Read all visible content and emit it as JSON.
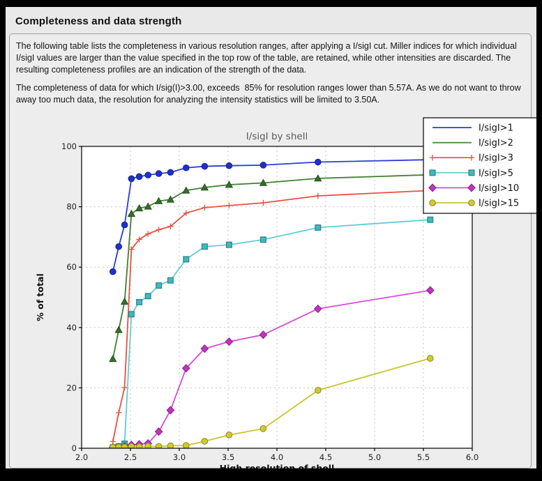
{
  "page": {
    "title": "Completeness and data strength",
    "paragraph1": "The following table lists the completeness in various resolution ranges, after applying a I/sigI cut. Miller indices for which individual I/sigI values are larger than the value specified in the top row of the table, are retained, while other intensities are discarded. The resulting completeness profiles are an indication of the strength of the data.",
    "paragraph2": "The completeness of data for which I/sig(I)>3.00, exceeds  85% for resolution ranges lower than 5.57A. As we do not want to throw away too much data, the resolution for analyzing the intensity statistics will be limited to 3.50A."
  },
  "chart_data": {
    "type": "line",
    "title": "I/sigI by shell",
    "xlabel": "High resolution of shell",
    "ylabel": "% of total",
    "xlim": [
      2.0,
      6.0
    ],
    "ylim": [
      0,
      100
    ],
    "xticks": [
      2.0,
      2.5,
      3.0,
      3.5,
      4.0,
      4.5,
      5.0,
      5.5,
      6.0
    ],
    "xtick_labels": [
      "2.0",
      "2.5",
      "3.0",
      "3.5",
      "4.0",
      "4.5",
      "5.0",
      "5.5",
      "6.0"
    ],
    "yticks": [
      0,
      20,
      40,
      60,
      80,
      100
    ],
    "ytick_labels": [
      "0",
      "20",
      "40",
      "60",
      "80",
      "100"
    ],
    "grid": true,
    "legend_position": "top-right",
    "title_color": "#5a5a5a",
    "grid_color": "#c3c3c3",
    "plot_bg": "#ffffff",
    "x": [
      2.32,
      2.38,
      2.44,
      2.51,
      2.59,
      2.68,
      2.79,
      2.91,
      3.07,
      3.26,
      3.51,
      3.86,
      4.42,
      5.57
    ],
    "series": [
      {
        "name": "I/sigI>1",
        "marker": "circle",
        "line_color": "#2a3cd2",
        "fill": "#1f32c8",
        "edge": "#141f96",
        "legend_marker": false,
        "values": [
          58.5,
          66.8,
          74.0,
          89.3,
          90.0,
          90.5,
          91.0,
          91.4,
          92.9,
          93.4,
          93.6,
          93.8,
          94.8,
          95.6
        ]
      },
      {
        "name": "I/sigI>2",
        "marker": "triangle",
        "line_color": "#3e8030",
        "fill": "#35702a",
        "edge": "#234d1b",
        "legend_marker": false,
        "values": [
          29.6,
          39.2,
          48.6,
          77.7,
          79.5,
          80.1,
          81.9,
          82.4,
          85.4,
          86.4,
          87.3,
          87.9,
          89.4,
          90.6
        ]
      },
      {
        "name": "I/sigI>3",
        "marker": "plus",
        "line_color": "#e8513e",
        "fill": "#e8513e",
        "edge": "#e8513e",
        "legend_marker": true,
        "values": [
          2.2,
          11.8,
          20.1,
          65.9,
          69.2,
          71.0,
          72.4,
          73.5,
          77.9,
          79.7,
          80.4,
          81.3,
          83.6,
          85.4
        ]
      },
      {
        "name": "I/sigI>5",
        "marker": "square",
        "line_color": "#5ccdd3",
        "fill": "#45b6bd",
        "edge": "#27858b",
        "legend_marker": true,
        "values": [
          0.3,
          0.6,
          1.5,
          44.4,
          48.4,
          50.4,
          53.9,
          55.6,
          62.6,
          66.8,
          67.4,
          69.1,
          73.1,
          75.7
        ]
      },
      {
        "name": "I/sigI>10",
        "marker": "diamond",
        "line_color": "#d44ed4",
        "fill": "#bf35bf",
        "edge": "#872287",
        "legend_marker": true,
        "values": [
          0.3,
          0.4,
          0.6,
          1.1,
          1.3,
          1.6,
          5.5,
          12.6,
          26.5,
          33.0,
          35.3,
          37.6,
          46.2,
          52.3
        ]
      },
      {
        "name": "I/sigI>15",
        "marker": "circle",
        "line_color": "#c9c42e",
        "fill": "#d3c933",
        "edge": "#8c861c",
        "legend_marker": true,
        "values": [
          0.3,
          0.4,
          0.4,
          0.6,
          0.5,
          0.7,
          0.6,
          0.8,
          0.9,
          2.3,
          4.4,
          6.5,
          19.2,
          29.8
        ]
      }
    ]
  }
}
